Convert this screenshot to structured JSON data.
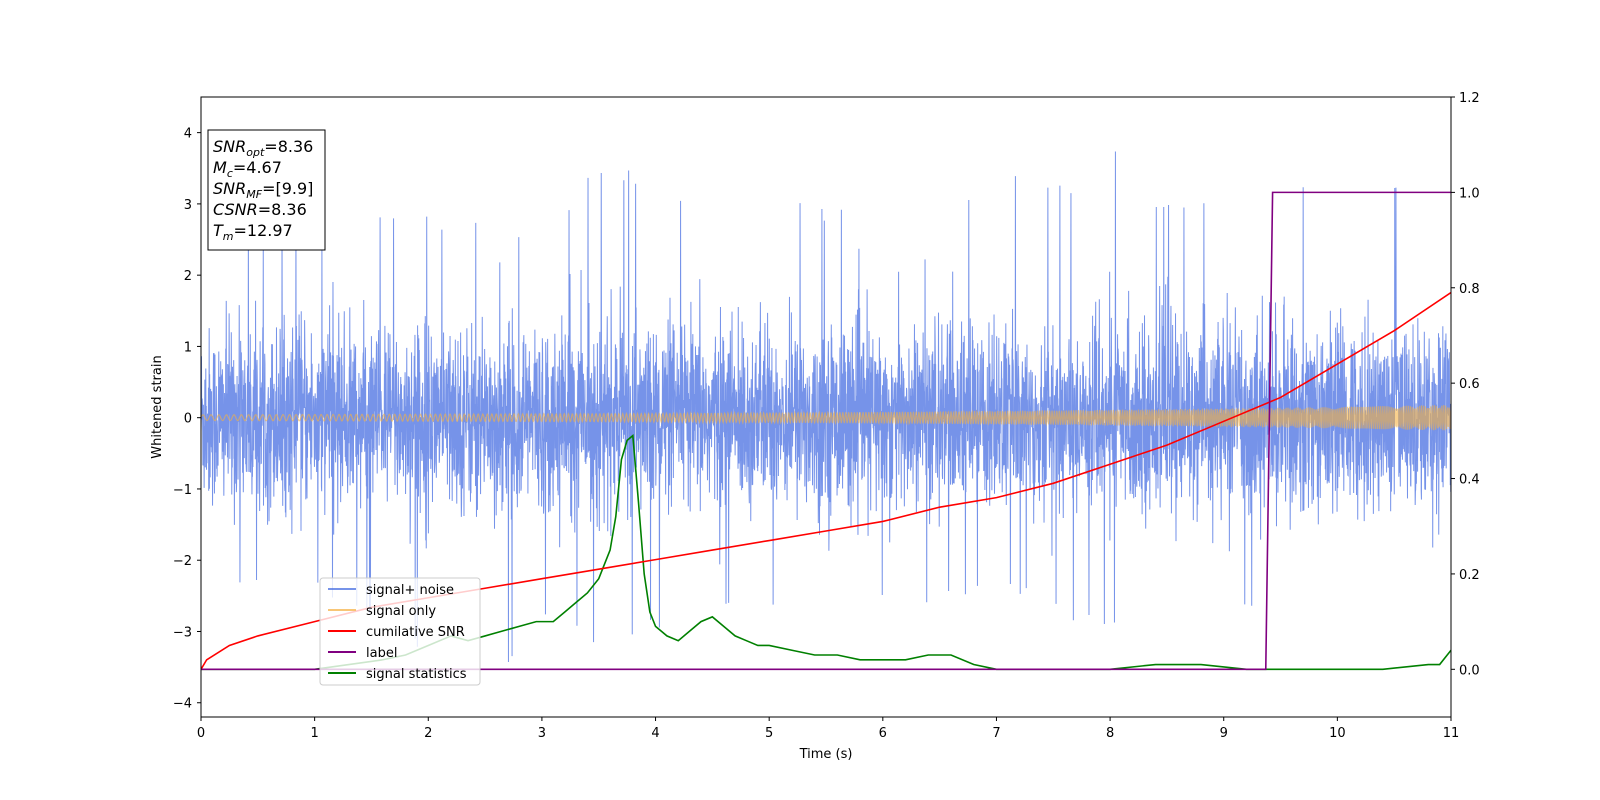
{
  "chart_data": {
    "type": "line",
    "xlabel": "Time (s)",
    "ylabel": "Whitened strain",
    "xlim": [
      0,
      11
    ],
    "ylim_left": [
      -4.2,
      4.5
    ],
    "ylim_right": [
      -0.1,
      1.2
    ],
    "x_ticks": [
      0,
      1,
      2,
      3,
      4,
      5,
      6,
      7,
      8,
      9,
      10,
      11
    ],
    "y_ticks_left": [
      -4,
      -3,
      -2,
      -1,
      0,
      1,
      2,
      3,
      4
    ],
    "y_ticks_right": [
      0.0,
      0.2,
      0.4,
      0.6,
      0.8,
      1.0,
      1.2
    ],
    "grid": false,
    "legend_position": "lower-left",
    "info_box": {
      "position": "top-left",
      "lines": [
        {
          "sym": "SNR",
          "sub": "opt",
          "value": "=8.36"
        },
        {
          "sym": "M",
          "sub": "c",
          "value": "=4.67"
        },
        {
          "sym": "SNR",
          "sub": "MF",
          "value": "=[9.9]"
        },
        {
          "sym": "CSNR",
          "sub": "",
          "value": "=8.36"
        },
        {
          "sym": "T",
          "sub": "m",
          "value": "=12.97"
        }
      ]
    },
    "series": [
      {
        "name": "signal+ noise",
        "axis": "left",
        "color": "#4169e1",
        "render": "noise",
        "envelope_min": [
          -2.6,
          -2.4,
          -2.5,
          -2.9,
          -3.3,
          -3.8,
          -2.9,
          -3.4,
          -3.0,
          -2.7,
          -2.9,
          -3.1,
          -2.6,
          -2.7,
          -2.5,
          -2.8,
          -3.0,
          -2.9,
          -2.7,
          -2.8,
          -2.9,
          -2.6,
          -2.7
        ],
        "envelope_max": [
          2.6,
          3.2,
          2.7,
          3.1,
          2.9,
          3.0,
          2.6,
          3.8,
          3.4,
          3.1,
          3.2,
          3.0,
          3.3,
          2.9,
          3.7,
          3.2,
          4.15,
          3.0,
          3.2,
          3.1,
          3.7,
          3.3,
          2.3
        ]
      },
      {
        "name": "signal only",
        "axis": "left",
        "color": "#f5b041",
        "render": "chirp",
        "amplitude_x": [
          0,
          2,
          4,
          6,
          8,
          10,
          11
        ],
        "amplitude": [
          0.04,
          0.05,
          0.06,
          0.08,
          0.11,
          0.15,
          0.18
        ]
      },
      {
        "name": "cumilative SNR",
        "axis": "right",
        "color": "#ff0000",
        "x": [
          0,
          0.05,
          0.25,
          0.5,
          1,
          1.5,
          2,
          2.5,
          3,
          3.5,
          4,
          4.5,
          5,
          5.5,
          6,
          6.5,
          7,
          7.5,
          8,
          8.5,
          9,
          9.5,
          10,
          10.5,
          11
        ],
        "y": [
          0.0,
          0.02,
          0.05,
          0.07,
          0.1,
          0.13,
          0.15,
          0.17,
          0.19,
          0.21,
          0.23,
          0.25,
          0.27,
          0.29,
          0.31,
          0.34,
          0.36,
          0.39,
          0.43,
          0.47,
          0.52,
          0.57,
          0.64,
          0.71,
          0.79
        ]
      },
      {
        "name": "label",
        "axis": "right",
        "color": "#800080",
        "x": [
          0,
          9.37,
          9.43,
          11
        ],
        "y": [
          0,
          0,
          1,
          1
        ]
      },
      {
        "name": "signal statistics",
        "axis": "right",
        "color": "#008000",
        "x": [
          0,
          0.5,
          1,
          1.3,
          1.6,
          1.8,
          2,
          2.2,
          2.35,
          2.5,
          2.65,
          2.8,
          2.95,
          3.1,
          3.2,
          3.3,
          3.4,
          3.5,
          3.6,
          3.65,
          3.7,
          3.75,
          3.8,
          3.85,
          3.9,
          3.95,
          4,
          4.05,
          4.1,
          4.2,
          4.3,
          4.4,
          4.5,
          4.6,
          4.7,
          4.8,
          4.9,
          5,
          5.2,
          5.4,
          5.6,
          5.8,
          6,
          6.2,
          6.4,
          6.6,
          6.8,
          7,
          7.3,
          7.6,
          8,
          8.4,
          8.8,
          9.2,
          9.4,
          9.6,
          10,
          10.4,
          10.8,
          10.9,
          11
        ],
        "y": [
          0,
          0,
          0.0,
          0.01,
          0.02,
          0.03,
          0.05,
          0.07,
          0.06,
          0.07,
          0.08,
          0.09,
          0.1,
          0.1,
          0.12,
          0.14,
          0.16,
          0.19,
          0.25,
          0.32,
          0.44,
          0.48,
          0.49,
          0.35,
          0.2,
          0.12,
          0.09,
          0.08,
          0.07,
          0.06,
          0.08,
          0.1,
          0.11,
          0.09,
          0.07,
          0.06,
          0.05,
          0.05,
          0.04,
          0.03,
          0.03,
          0.02,
          0.02,
          0.02,
          0.03,
          0.03,
          0.01,
          0.0,
          0.0,
          0.0,
          0.0,
          0.01,
          0.01,
          0.0,
          0.0,
          0.0,
          0.0,
          0.0,
          0.01,
          0.01,
          0.04
        ]
      }
    ]
  }
}
